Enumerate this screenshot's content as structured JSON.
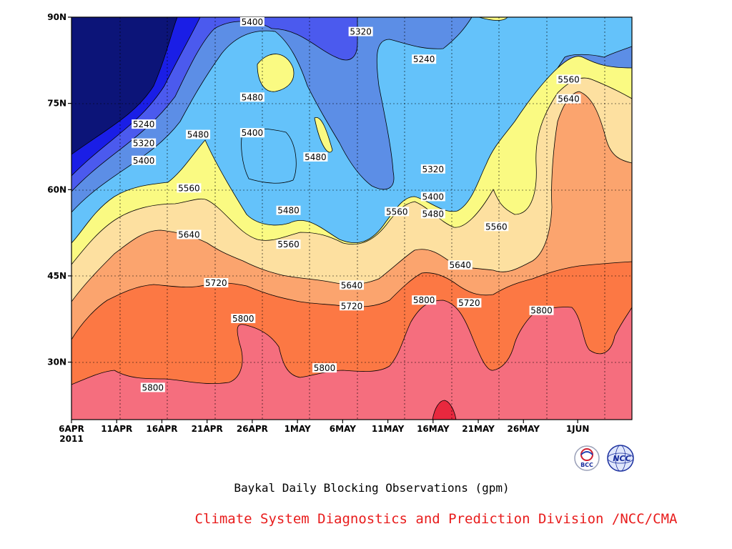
{
  "chart_data": {
    "type": "contour",
    "title": "Baykal Daily Blocking Observations (gpm)",
    "x_tick_labels": [
      "6APR",
      "11APR",
      "16APR",
      "21APR",
      "26APR",
      "1MAY",
      "6MAY",
      "11MAY",
      "16MAY",
      "21MAY",
      "26MAY",
      "1JUN"
    ],
    "x_year_label": "2011",
    "x_range": [
      "2011-04-06",
      "2011-06-07"
    ],
    "y_tick_labels": [
      "30N",
      "45N",
      "60N",
      "75N",
      "90N"
    ],
    "y_range": [
      20,
      90
    ],
    "grid": true,
    "levels": [
      5240,
      5320,
      5400,
      5480,
      5560,
      5640,
      5720,
      5800
    ],
    "level_colors": [
      "#0c1478",
      "#1a1ee6",
      "#4b5aee",
      "#5c8ee6",
      "#64c2fa",
      "#fafa82",
      "#fde0a0",
      "#fba46e",
      "#fc7844",
      "#f56e7e",
      "#e8283e"
    ],
    "contour_labels": [
      {
        "value": "5400",
        "date": "2011-04-26",
        "lat": 89.2
      },
      {
        "value": "5320",
        "date": "2011-05-08",
        "lat": 87.5
      },
      {
        "value": "5240",
        "date": "2011-05-15",
        "lat": 82.7
      },
      {
        "value": "5560",
        "date": "2011-05-31",
        "lat": 79.2
      },
      {
        "value": "5480",
        "date": "2011-04-26",
        "lat": 76.1
      },
      {
        "value": "5640",
        "date": "2011-05-31",
        "lat": 75.8
      },
      {
        "value": "5240",
        "date": "2011-04-14",
        "lat": 71.4
      },
      {
        "value": "5480",
        "date": "2011-04-20",
        "lat": 69.6
      },
      {
        "value": "5400",
        "date": "2011-04-26",
        "lat": 69.9
      },
      {
        "value": "5320",
        "date": "2011-04-14",
        "lat": 68.1
      },
      {
        "value": "5400",
        "date": "2011-04-14",
        "lat": 65.1
      },
      {
        "value": "5480",
        "date": "2011-05-03",
        "lat": 65.7
      },
      {
        "value": "5320",
        "date": "2011-05-16",
        "lat": 63.6
      },
      {
        "value": "5560",
        "date": "2011-04-19",
        "lat": 60.3
      },
      {
        "value": "5400",
        "date": "2011-05-16",
        "lat": 58.8
      },
      {
        "value": "5480",
        "date": "2011-05-16",
        "lat": 55.8
      },
      {
        "value": "5560",
        "date": "2011-05-12",
        "lat": 56.2
      },
      {
        "value": "5480",
        "date": "2011-04-30",
        "lat": 56.4
      },
      {
        "value": "5560",
        "date": "2011-05-23",
        "lat": 53.6
      },
      {
        "value": "5640",
        "date": "2011-04-19",
        "lat": 52.2
      },
      {
        "value": "5560",
        "date": "2011-04-30",
        "lat": 50.5
      },
      {
        "value": "5640",
        "date": "2011-05-19",
        "lat": 46.9
      },
      {
        "value": "5640",
        "date": "2011-05-07",
        "lat": 43.4
      },
      {
        "value": "5720",
        "date": "2011-04-22",
        "lat": 43.8
      },
      {
        "value": "5720",
        "date": "2011-05-07",
        "lat": 39.8
      },
      {
        "value": "5800",
        "date": "2011-05-15",
        "lat": 40.8
      },
      {
        "value": "5720",
        "date": "2011-05-20",
        "lat": 40.3
      },
      {
        "value": "5800",
        "date": "2011-05-28",
        "lat": 39.0
      },
      {
        "value": "5800",
        "date": "2011-04-25",
        "lat": 37.6
      },
      {
        "value": "5800",
        "date": "2011-05-04",
        "lat": 29.0
      },
      {
        "value": "5800",
        "date": "2011-04-15",
        "lat": 25.6
      }
    ]
  },
  "footer": {
    "credit": "Climate System Diagnostics and Prediction Division /NCC/CMA",
    "logo_left": "BCC",
    "logo_right": "NCC"
  }
}
